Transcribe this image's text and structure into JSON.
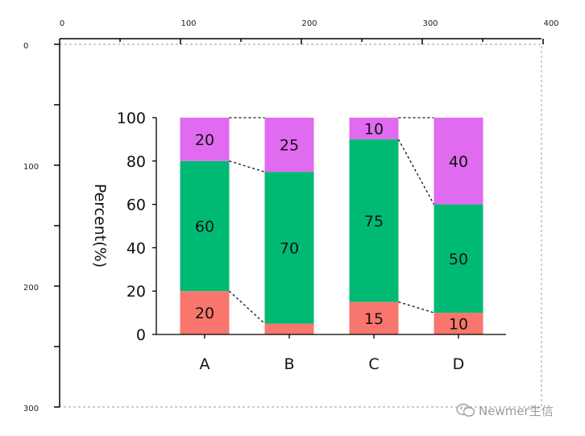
{
  "rulers": {
    "top": [
      "0",
      "100",
      "200",
      "300",
      "400"
    ],
    "left": [
      "0",
      "100",
      "200",
      "300"
    ]
  },
  "chart_data": {
    "type": "bar",
    "stacked": true,
    "categories": [
      "A",
      "B",
      "C",
      "D"
    ],
    "series": [
      {
        "values": [
          20,
          5,
          15,
          10
        ],
        "labels": [
          "20",
          "",
          "15",
          "10"
        ],
        "color": "#f8766d"
      },
      {
        "values": [
          60,
          70,
          75,
          50
        ],
        "labels": [
          "60",
          "70",
          "75",
          "50"
        ],
        "color": "#00ba74"
      },
      {
        "values": [
          20,
          25,
          10,
          40
        ],
        "labels": [
          "20",
          "25",
          "10",
          "40"
        ],
        "color": "#e06bf0"
      }
    ],
    "ylabel": "Percent(%)",
    "ylim": [
      0,
      100
    ],
    "yticks": [
      "0",
      "20",
      "40",
      "60",
      "80",
      "100"
    ],
    "connector_lines": "dashed",
    "grid": false
  },
  "watermark": {
    "text": "Newmer生信",
    "icon": "wechat-icon"
  }
}
